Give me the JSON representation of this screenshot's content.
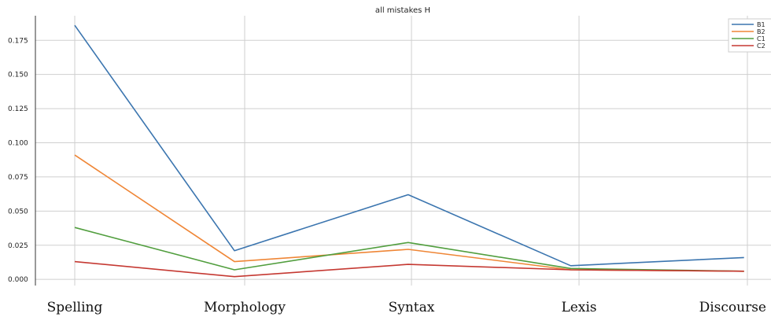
{
  "chart_data": {
    "type": "line",
    "title": "all mistakes H",
    "categories": [
      "Spelling",
      "Morphology",
      "Syntax",
      "Lexis",
      "Discourse"
    ],
    "x_index": [
      0,
      1,
      2,
      3,
      4
    ],
    "ytick_values": [
      0.0,
      0.025,
      0.05,
      0.075,
      0.1,
      0.125,
      0.15,
      0.175
    ],
    "ytick_labels": [
      "0.000",
      "0.025",
      "0.050",
      "0.075",
      "0.100",
      "0.125",
      "0.150",
      "0.175"
    ],
    "ylim": [
      -0.0045,
      0.193
    ],
    "grid": true,
    "legend_position": "top-right",
    "series": [
      {
        "name": "B1",
        "color": "#3b75af",
        "x": [
          0,
          0.94,
          1.98,
          2.95,
          3.98
        ],
        "values": [
          0.186,
          0.021,
          0.062,
          0.01,
          0.016
        ]
      },
      {
        "name": "B2",
        "color": "#ef8636",
        "x": [
          0,
          0.94,
          1.98,
          2.95,
          3.98
        ],
        "values": [
          0.091,
          0.013,
          0.022,
          0.007,
          0.006
        ]
      },
      {
        "name": "C1",
        "color": "#519e3e",
        "x": [
          0,
          0.94,
          1.98,
          2.95,
          3.98
        ],
        "values": [
          0.038,
          0.007,
          0.027,
          0.008,
          0.006
        ]
      },
      {
        "name": "C2",
        "color": "#c53932",
        "x": [
          0,
          0.94,
          1.98,
          2.95,
          3.98
        ],
        "values": [
          0.013,
          0.002,
          0.011,
          0.007,
          0.006
        ]
      }
    ]
  }
}
